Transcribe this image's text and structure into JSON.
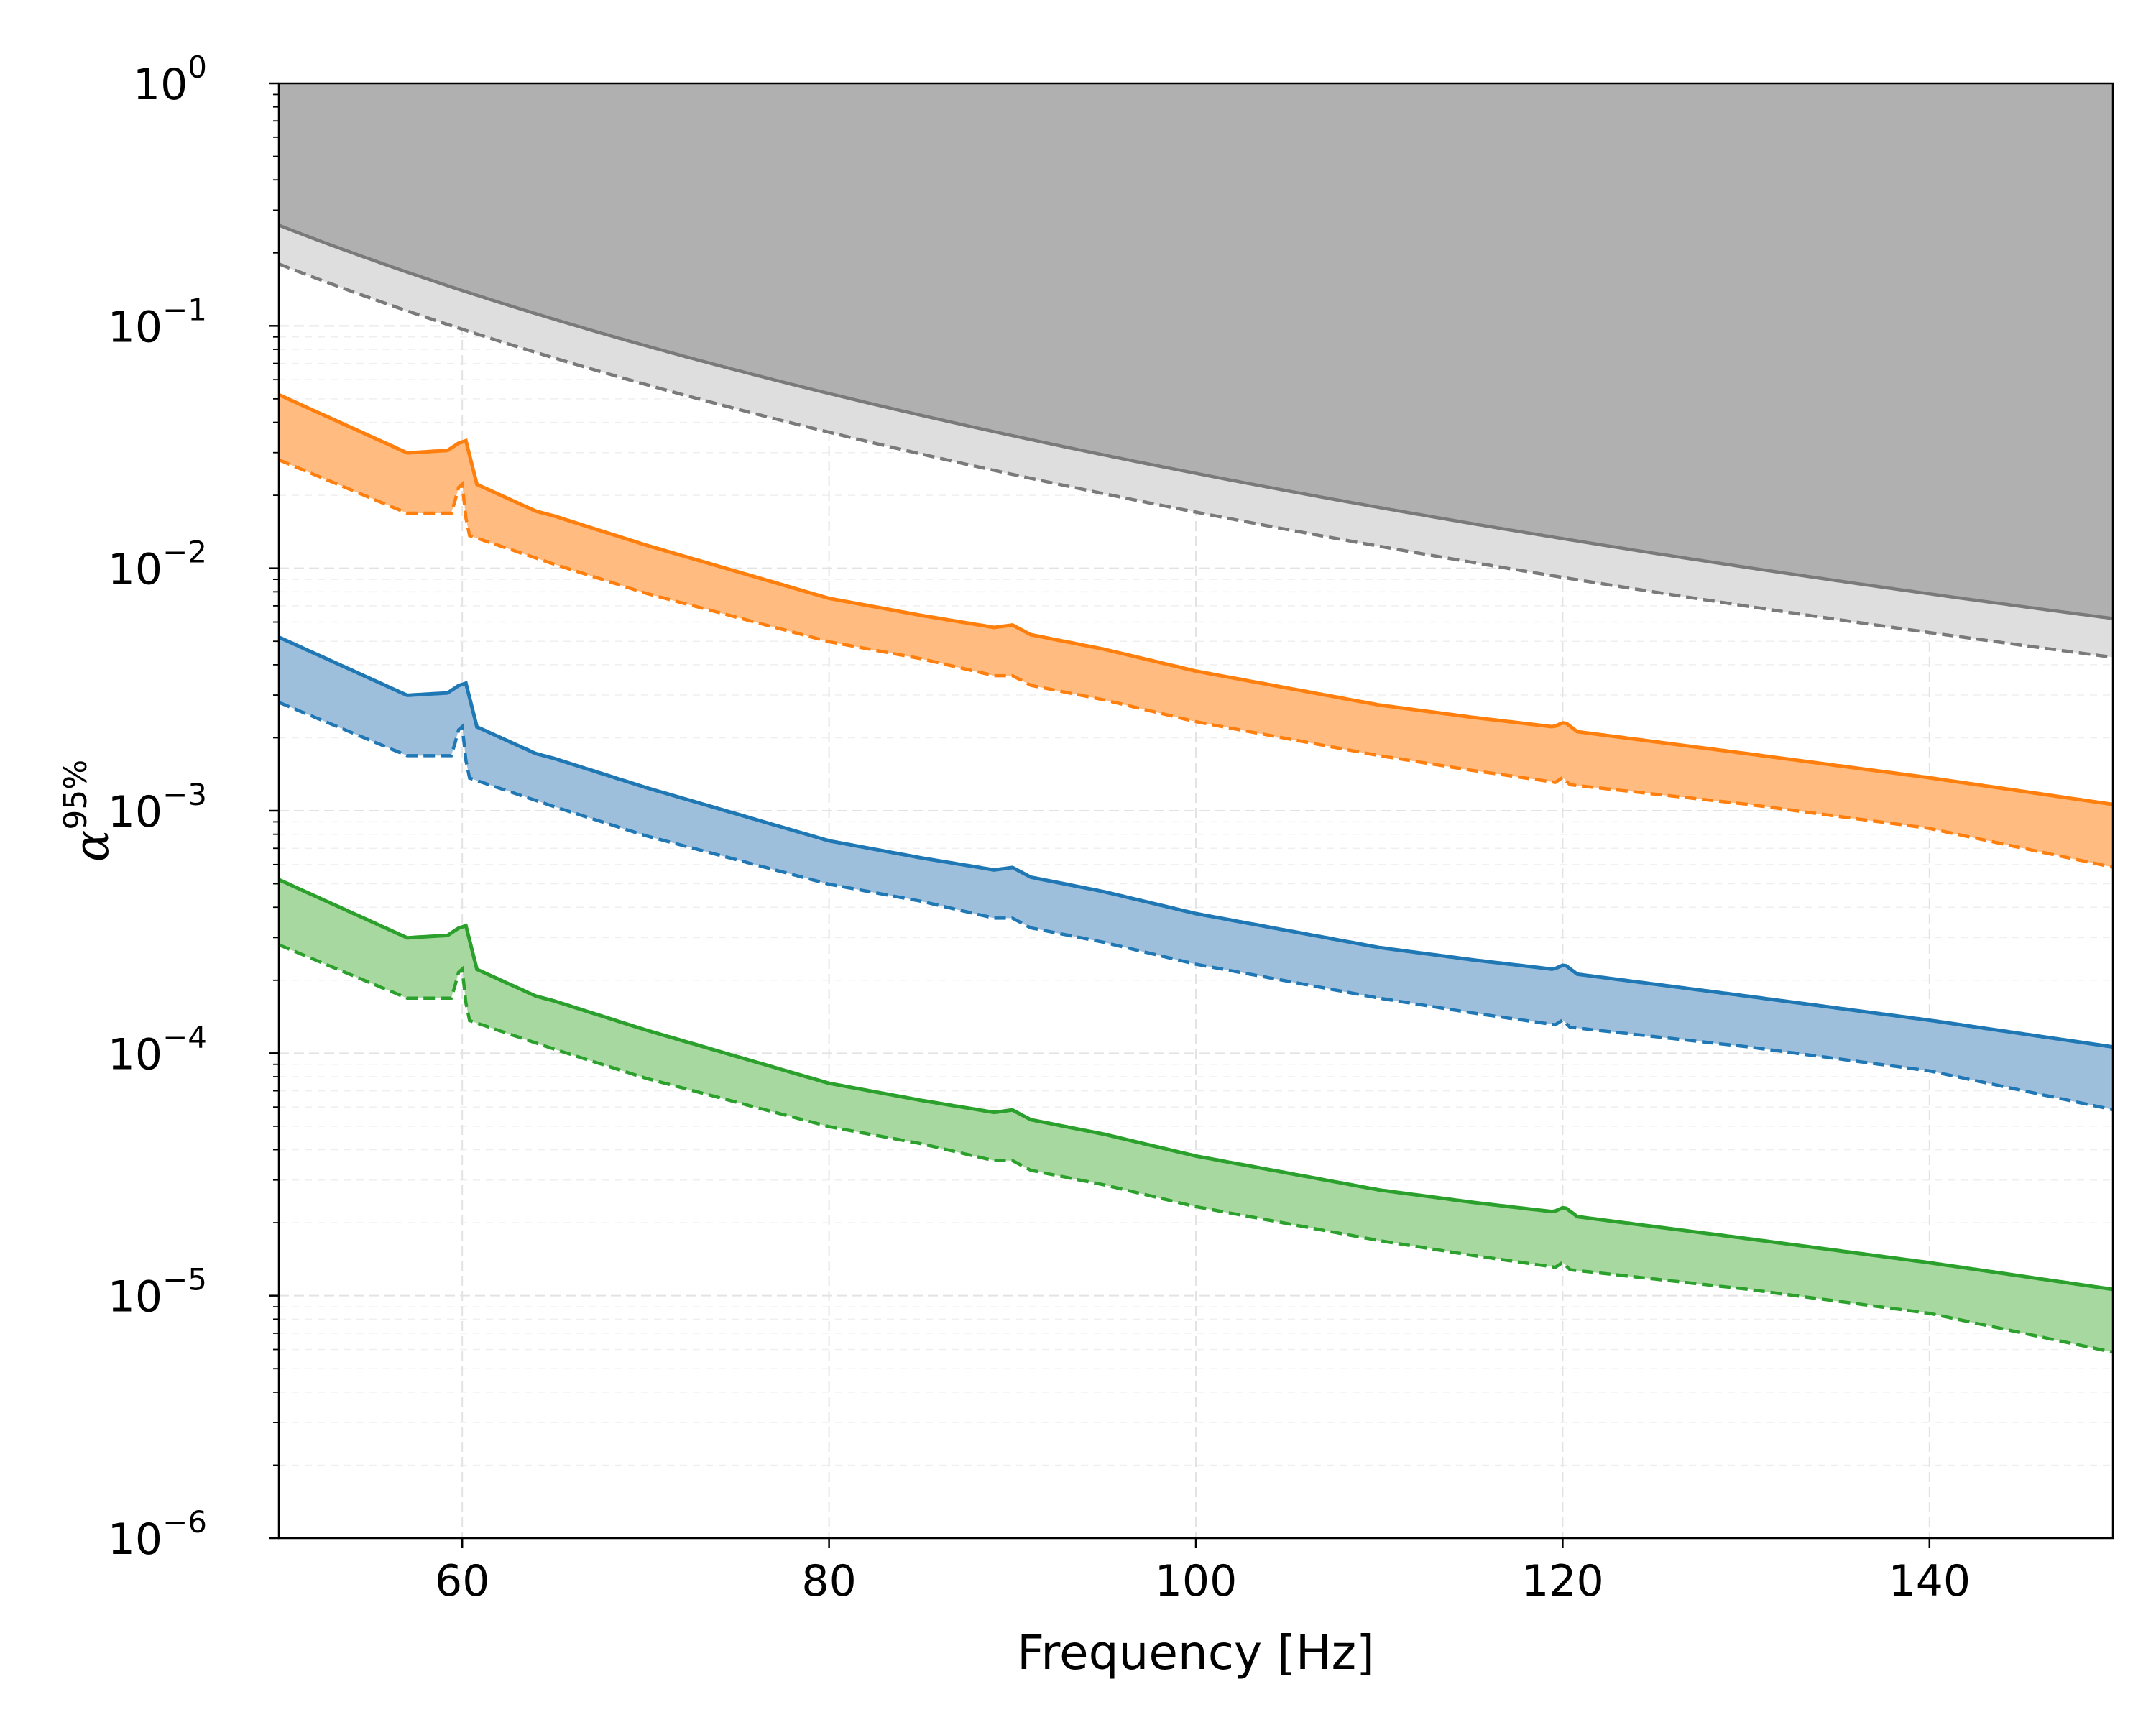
{
  "chart_data": {
    "type": "area",
    "title": "",
    "xlabel": "Frequency [Hz]",
    "ylabel_base": "α",
    "ylabel_sup": "95%",
    "xlim": [
      50,
      150
    ],
    "ylim_log10": [
      -6,
      0
    ],
    "yscale": "log",
    "grid": true,
    "x_ticks": [
      {
        "value": 60,
        "label": "60"
      },
      {
        "value": 80,
        "label": "80"
      },
      {
        "value": 100,
        "label": "100"
      },
      {
        "value": 120,
        "label": "120"
      },
      {
        "value": 140,
        "label": "140"
      }
    ],
    "y_ticks": [
      {
        "exp": 0,
        "base": "10",
        "sup": "0"
      },
      {
        "exp": -1,
        "base": "10",
        "sup": "−1"
      },
      {
        "exp": -2,
        "base": "10",
        "sup": "−2"
      },
      {
        "exp": -3,
        "base": "10",
        "sup": "−3"
      },
      {
        "exp": -4,
        "base": "10",
        "sup": "−4"
      },
      {
        "exp": -5,
        "base": "10",
        "sup": "−5"
      },
      {
        "exp": -6,
        "base": "10",
        "sup": "−6"
      }
    ],
    "excluded_region": {
      "color": "#b0b0b0",
      "band_color": "#dedede",
      "line_color": "#7a7a7a",
      "solid_edge": {
        "start_value": 0.26,
        "slope": -3.4
      },
      "dashed_edge": {
        "start_value": 0.18,
        "slope": -3.4
      }
    },
    "series": [
      {
        "name": "orange",
        "color": "#ff7f0e",
        "fill": "#ffbb80",
        "upper_start": 0.052,
        "lower_start": 0.028
      },
      {
        "name": "blue",
        "color": "#1f77b4",
        "fill": "#9ebfdc",
        "upper_start": 0.0052,
        "lower_start": 0.0028
      },
      {
        "name": "green",
        "color": "#2ca02c",
        "fill": "#a6d8a0",
        "upper_start": 0.00052,
        "lower_start": 0.00028
      }
    ],
    "curve_shape": {
      "note": "log-offsets of each band edge relative to its starting value at 50 Hz",
      "upper_points": [
        [
          50,
          0
        ],
        [
          57,
          -0.24
        ],
        [
          59.2,
          -0.23
        ],
        [
          59.8,
          -0.2
        ],
        [
          60.2,
          -0.19
        ],
        [
          60.8,
          -0.37
        ],
        [
          64,
          -0.48
        ],
        [
          65,
          -0.5
        ],
        [
          70,
          -0.62
        ],
        [
          75,
          -0.73
        ],
        [
          80,
          -0.84
        ],
        [
          85,
          -0.91
        ],
        [
          89,
          -0.96
        ],
        [
          90,
          -0.95
        ],
        [
          91,
          -0.99
        ],
        [
          95,
          -1.05
        ],
        [
          100,
          -1.14
        ],
        [
          105,
          -1.21
        ],
        [
          110,
          -1.28
        ],
        [
          115,
          -1.33
        ],
        [
          119.5,
          -1.37
        ],
        [
          120.1,
          -1.35
        ],
        [
          120.8,
          -1.39
        ],
        [
          130,
          -1.48
        ],
        [
          140,
          -1.58
        ],
        [
          150,
          -1.69
        ]
      ],
      "lower_points": [
        [
          50,
          0
        ],
        [
          57,
          -0.22
        ],
        [
          59.5,
          -0.22
        ],
        [
          59.7,
          -0.12
        ],
        [
          60,
          -0.1
        ],
        [
          60.3,
          -0.31
        ],
        [
          65,
          -0.43
        ],
        [
          70,
          -0.55
        ],
        [
          75,
          -0.65
        ],
        [
          80,
          -0.75
        ],
        [
          85,
          -0.82
        ],
        [
          89,
          -0.89
        ],
        [
          90,
          -0.89
        ],
        [
          91,
          -0.93
        ],
        [
          95,
          -0.99
        ],
        [
          100,
          -1.08
        ],
        [
          105,
          -1.15
        ],
        [
          110,
          -1.22
        ],
        [
          115,
          -1.28
        ],
        [
          119.6,
          -1.33
        ],
        [
          120,
          -1.31
        ],
        [
          120.4,
          -1.34
        ],
        [
          130,
          -1.42
        ],
        [
          140,
          -1.52
        ],
        [
          150,
          -1.68
        ]
      ]
    }
  }
}
